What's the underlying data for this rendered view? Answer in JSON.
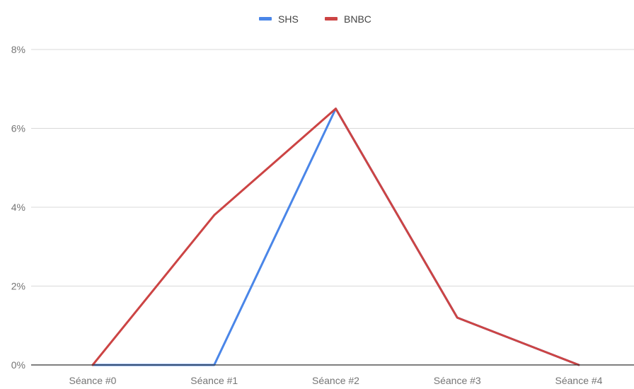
{
  "chart_data": {
    "type": "line",
    "title": "",
    "xlabel": "",
    "ylabel": "",
    "categories": [
      "Séance #0",
      "Séance #1",
      "Séance #2",
      "Séance #3",
      "Séance #4"
    ],
    "series": [
      {
        "name": "SHS",
        "color": "#4a86e8",
        "values": [
          0,
          0,
          6.5,
          1.2,
          0
        ]
      },
      {
        "name": "BNBC",
        "color": "#cc4444",
        "values": [
          0,
          3.8,
          6.5,
          1.2,
          0
        ]
      }
    ],
    "ylim": [
      0,
      8
    ],
    "yticks": [
      0,
      2,
      4,
      6,
      8
    ],
    "ytick_labels": [
      "0%",
      "2%",
      "4%",
      "6%",
      "8%"
    ],
    "grid": true,
    "legend_position": "top-center"
  }
}
